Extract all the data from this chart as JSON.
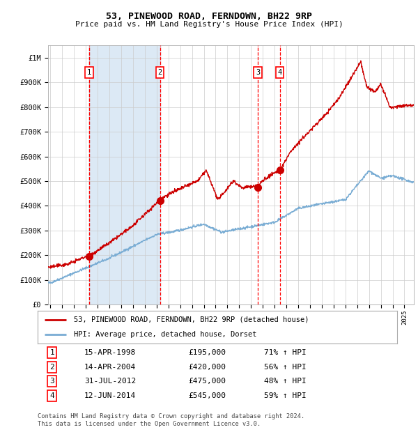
{
  "title": "53, PINEWOOD ROAD, FERNDOWN, BH22 9RP",
  "subtitle": "Price paid vs. HM Land Registry's House Price Index (HPI)",
  "red_line_color": "#cc0000",
  "blue_line_color": "#7aadd4",
  "shaded_region_color": "#dce9f5",
  "background_color": "#ffffff",
  "grid_color": "#cccccc",
  "purchases": [
    {
      "label": "1",
      "date_num": 1998.29,
      "price": 195000,
      "date_str": "15-APR-1998",
      "price_str": "£195,000",
      "pct_str": "71% ↑ HPI"
    },
    {
      "label": "2",
      "date_num": 2004.29,
      "price": 420000,
      "date_str": "14-APR-2004",
      "price_str": "£420,000",
      "pct_str": "56% ↑ HPI"
    },
    {
      "label": "3",
      "date_num": 2012.58,
      "price": 475000,
      "date_str": "31-JUL-2012",
      "price_str": "£475,000",
      "pct_str": "48% ↑ HPI"
    },
    {
      "label": "4",
      "date_num": 2014.44,
      "price": 545000,
      "date_str": "12-JUN-2014",
      "price_str": "£545,000",
      "pct_str": "59% ↑ HPI"
    }
  ],
  "ylim": [
    0,
    1050000
  ],
  "xlim": [
    1994.8,
    2025.8
  ],
  "yticks": [
    0,
    100000,
    200000,
    300000,
    400000,
    500000,
    600000,
    700000,
    800000,
    900000,
    1000000
  ],
  "ytick_labels": [
    "£0",
    "£100K",
    "£200K",
    "£300K",
    "£400K",
    "£500K",
    "£600K",
    "£700K",
    "£800K",
    "£900K",
    "£1M"
  ],
  "xticks": [
    1995,
    1996,
    1997,
    1998,
    1999,
    2000,
    2001,
    2002,
    2003,
    2004,
    2005,
    2006,
    2007,
    2008,
    2009,
    2010,
    2011,
    2012,
    2013,
    2014,
    2015,
    2016,
    2017,
    2018,
    2019,
    2020,
    2021,
    2022,
    2023,
    2024,
    2025
  ],
  "legend_line1": "53, PINEWOOD ROAD, FERNDOWN, BH22 9RP (detached house)",
  "legend_line2": "HPI: Average price, detached house, Dorset",
  "footnote": "Contains HM Land Registry data © Crown copyright and database right 2024.\nThis data is licensed under the Open Government Licence v3.0.",
  "table": [
    [
      "1",
      "15-APR-1998",
      "£195,000",
      "71% ↑ HPI"
    ],
    [
      "2",
      "14-APR-2004",
      "£420,000",
      "56% ↑ HPI"
    ],
    [
      "3",
      "31-JUL-2012",
      "£475,000",
      "48% ↑ HPI"
    ],
    [
      "4",
      "12-JUN-2014",
      "£545,000",
      "59% ↑ HPI"
    ]
  ]
}
